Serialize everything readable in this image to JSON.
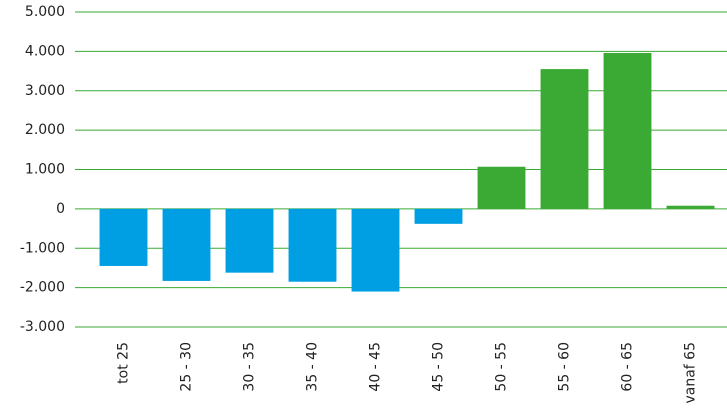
{
  "chart_data": {
    "type": "bar",
    "categories": [
      "tot 25",
      "25 - 30",
      "30 - 35",
      "35 - 40",
      "40 - 45",
      "45 - 50",
      "50 - 55",
      "55 - 60",
      "60 - 65",
      "vanaf 65"
    ],
    "values": [
      -1450,
      -1830,
      -1620,
      -1850,
      -2100,
      -380,
      1070,
      3550,
      3960,
      80
    ],
    "color": "#3aaa35",
    "negative_color": "#009fe3",
    "ylim": [
      -3000,
      5000
    ],
    "yticks": [
      {
        "value": -3000,
        "label": "-3.000"
      },
      {
        "value": -2000,
        "label": "-2.000"
      },
      {
        "value": -1000,
        "label": "-1.000"
      },
      0,
      {
        "value": 1000,
        "label": "1.000"
      },
      {
        "value": 2000,
        "label": "2.000"
      },
      {
        "value": 3000,
        "label": "3.000"
      },
      {
        "value": 4000,
        "label": "4.000"
      },
      {
        "value": 5000,
        "label": "5.000"
      }
    ],
    "grid": true
  }
}
